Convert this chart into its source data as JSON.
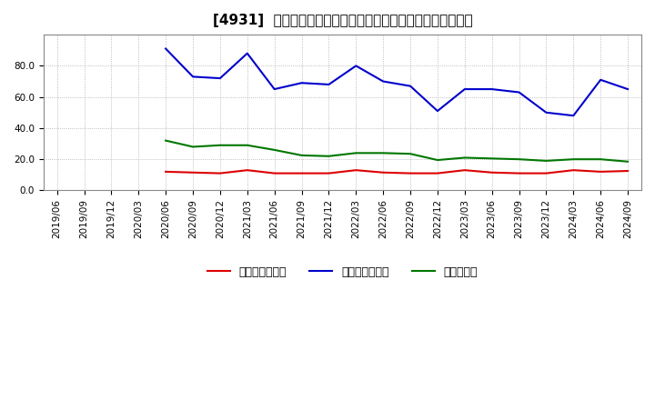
{
  "title": "[4931]  売上債権回転率、買入債務回転率、在庫回転率の推移",
  "xlabel": "",
  "ylabel": "",
  "ylim": [
    0.0,
    100.0
  ],
  "yticks": [
    0.0,
    20.0,
    40.0,
    60.0,
    80.0
  ],
  "background_color": "#ffffff",
  "plot_background_color": "#ffffff",
  "grid_color": "#aaaaaa",
  "dates": [
    "2019/06",
    "2019/09",
    "2019/12",
    "2020/03",
    "2020/06",
    "2020/09",
    "2020/12",
    "2021/03",
    "2021/06",
    "2021/09",
    "2021/12",
    "2022/03",
    "2022/06",
    "2022/09",
    "2022/12",
    "2023/03",
    "2023/06",
    "2023/09",
    "2023/12",
    "2024/03",
    "2024/06",
    "2024/09"
  ],
  "receivables_turnover": [
    null,
    null,
    null,
    null,
    12.0,
    11.5,
    11.0,
    13.0,
    11.0,
    11.0,
    11.0,
    13.0,
    11.5,
    11.0,
    11.0,
    13.0,
    11.5,
    11.0,
    11.0,
    13.0,
    12.0,
    12.5
  ],
  "payables_turnover": [
    null,
    null,
    null,
    null,
    91.0,
    73.0,
    72.0,
    88.0,
    65.0,
    69.0,
    68.0,
    80.0,
    70.0,
    67.0,
    51.0,
    65.0,
    65.0,
    63.0,
    50.0,
    48.0,
    71.0,
    65.0
  ],
  "inventory_turnover": [
    null,
    null,
    null,
    null,
    32.0,
    28.0,
    29.0,
    29.0,
    26.0,
    22.5,
    22.0,
    24.0,
    24.0,
    23.5,
    19.5,
    21.0,
    20.5,
    20.0,
    19.0,
    20.0,
    20.0,
    18.5
  ],
  "receivables_color": "#dd0000",
  "payables_color": "#0000cc",
  "inventory_color": "#007700",
  "line_width": 1.5,
  "legend_labels": [
    "売上債権回転率",
    "買入債務回転率",
    "在庫回転率"
  ],
  "title_fontsize": 11,
  "tick_fontsize": 7.5,
  "legend_fontsize": 9
}
